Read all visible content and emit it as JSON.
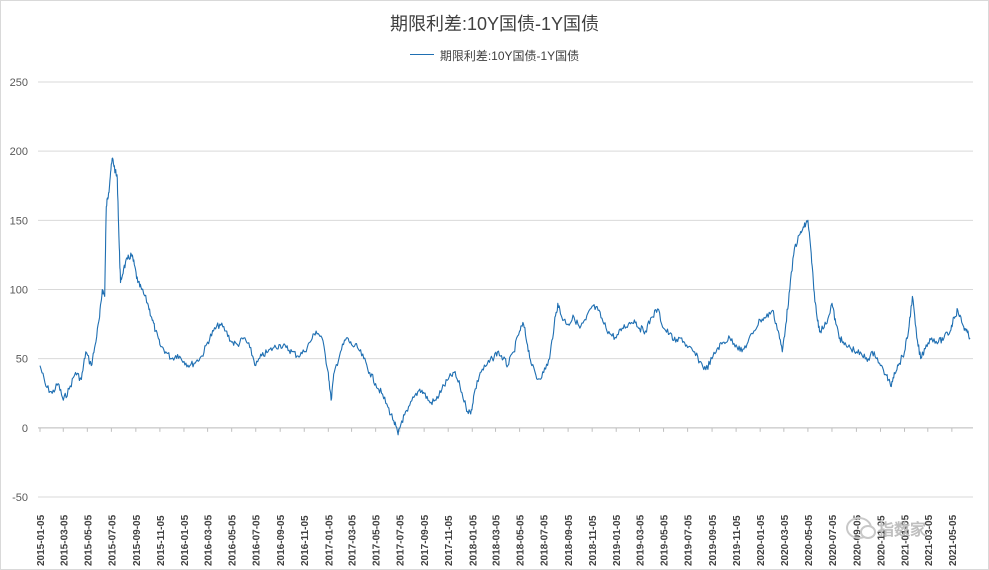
{
  "chart_data": {
    "type": "line",
    "title": "期限利差:10Y国债-1Y国债",
    "legend": {
      "position": "top",
      "entries": [
        "期限利差:10Y国债-1Y国债"
      ]
    },
    "xlabel": "",
    "ylabel": "",
    "ylim": [
      -50,
      250
    ],
    "yticks": [
      -50,
      0,
      50,
      100,
      150,
      200,
      250
    ],
    "grid": "horizontal",
    "series_color": "#1f6fb2",
    "xticks": [
      "2015-01-05",
      "2015-03-05",
      "2015-05-05",
      "2015-07-05",
      "2015-09-05",
      "2015-11-05",
      "2016-01-05",
      "2016-03-05",
      "2016-05-05",
      "2016-07-05",
      "2016-09-05",
      "2016-11-05",
      "2017-01-05",
      "2017-03-05",
      "2017-05-05",
      "2017-07-05",
      "2017-09-05",
      "2017-11-05",
      "2018-01-05",
      "2018-03-05",
      "2018-05-05",
      "2018-07-05",
      "2018-09-05",
      "2018-11-05",
      "2019-01-05",
      "2019-03-05",
      "2019-05-05",
      "2019-07-05",
      "2019-09-05",
      "2019-11-05",
      "2020-01-05",
      "2020-03-05",
      "2020-05-05",
      "2020-07-05",
      "2020-09-05",
      "2020-11-05",
      "2021-01-05",
      "2021-03-05",
      "2021-05-05"
    ],
    "series": [
      {
        "name": "期限利差:10Y国债-1Y国债",
        "points": [
          [
            "2015-01-05",
            45
          ],
          [
            "2015-01-20",
            30
          ],
          [
            "2015-02-05",
            25
          ],
          [
            "2015-02-20",
            32
          ],
          [
            "2015-03-05",
            20
          ],
          [
            "2015-03-20",
            28
          ],
          [
            "2015-04-05",
            40
          ],
          [
            "2015-04-20",
            35
          ],
          [
            "2015-05-01",
            55
          ],
          [
            "2015-05-15",
            45
          ],
          [
            "2015-05-25",
            60
          ],
          [
            "2015-06-05",
            80
          ],
          [
            "2015-06-12",
            100
          ],
          [
            "2015-06-18",
            95
          ],
          [
            "2015-06-22",
            160
          ],
          [
            "2015-06-28",
            170
          ],
          [
            "2015-07-03",
            185
          ],
          [
            "2015-07-08",
            195
          ],
          [
            "2015-07-15",
            185
          ],
          [
            "2015-07-20",
            180
          ],
          [
            "2015-07-25",
            130
          ],
          [
            "2015-07-28",
            105
          ],
          [
            "2015-08-05",
            115
          ],
          [
            "2015-08-15",
            122
          ],
          [
            "2015-08-25",
            125
          ],
          [
            "2015-09-01",
            118
          ],
          [
            "2015-09-10",
            105
          ],
          [
            "2015-09-20",
            100
          ],
          [
            "2015-10-05",
            90
          ],
          [
            "2015-10-15",
            80
          ],
          [
            "2015-10-25",
            70
          ],
          [
            "2015-11-05",
            60
          ],
          [
            "2015-11-20",
            55
          ],
          [
            "2015-12-05",
            50
          ],
          [
            "2015-12-20",
            53
          ],
          [
            "2016-01-05",
            48
          ],
          [
            "2016-01-20",
            45
          ],
          [
            "2016-02-05",
            48
          ],
          [
            "2016-02-20",
            52
          ],
          [
            "2016-03-05",
            62
          ],
          [
            "2016-03-20",
            70
          ],
          [
            "2016-04-05",
            75
          ],
          [
            "2016-04-20",
            70
          ],
          [
            "2016-05-05",
            62
          ],
          [
            "2016-05-20",
            60
          ],
          [
            "2016-06-05",
            65
          ],
          [
            "2016-06-20",
            58
          ],
          [
            "2016-07-05",
            45
          ],
          [
            "2016-07-20",
            52
          ],
          [
            "2016-08-05",
            55
          ],
          [
            "2016-08-20",
            58
          ],
          [
            "2016-09-05",
            60
          ],
          [
            "2016-09-20",
            58
          ],
          [
            "2016-10-05",
            55
          ],
          [
            "2016-10-20",
            52
          ],
          [
            "2016-11-05",
            55
          ],
          [
            "2016-11-20",
            62
          ],
          [
            "2016-12-05",
            70
          ],
          [
            "2016-12-20",
            65
          ],
          [
            "2017-01-05",
            40
          ],
          [
            "2017-01-12",
            20
          ],
          [
            "2017-01-20",
            40
          ],
          [
            "2017-02-05",
            55
          ],
          [
            "2017-02-20",
            65
          ],
          [
            "2017-03-05",
            60
          ],
          [
            "2017-03-20",
            58
          ],
          [
            "2017-04-05",
            50
          ],
          [
            "2017-04-20",
            40
          ],
          [
            "2017-05-05",
            32
          ],
          [
            "2017-05-20",
            25
          ],
          [
            "2017-06-05",
            15
          ],
          [
            "2017-06-20",
            5
          ],
          [
            "2017-07-01",
            -5
          ],
          [
            "2017-07-10",
            5
          ],
          [
            "2017-07-25",
            12
          ],
          [
            "2017-08-10",
            22
          ],
          [
            "2017-08-25",
            28
          ],
          [
            "2017-09-05",
            25
          ],
          [
            "2017-09-20",
            18
          ],
          [
            "2017-10-05",
            20
          ],
          [
            "2017-10-20",
            28
          ],
          [
            "2017-11-05",
            35
          ],
          [
            "2017-11-20",
            40
          ],
          [
            "2017-12-05",
            30
          ],
          [
            "2017-12-20",
            15
          ],
          [
            "2018-01-01",
            10
          ],
          [
            "2018-01-10",
            25
          ],
          [
            "2018-01-25",
            40
          ],
          [
            "2018-02-10",
            45
          ],
          [
            "2018-02-25",
            50
          ],
          [
            "2018-03-10",
            55
          ],
          [
            "2018-03-25",
            50
          ],
          [
            "2018-04-05",
            45
          ],
          [
            "2018-04-20",
            55
          ],
          [
            "2018-05-05",
            70
          ],
          [
            "2018-05-15",
            75
          ],
          [
            "2018-05-25",
            60
          ],
          [
            "2018-06-05",
            45
          ],
          [
            "2018-06-20",
            35
          ],
          [
            "2018-07-05",
            40
          ],
          [
            "2018-07-20",
            50
          ],
          [
            "2018-08-01",
            75
          ],
          [
            "2018-08-10",
            90
          ],
          [
            "2018-08-20",
            80
          ],
          [
            "2018-09-05",
            75
          ],
          [
            "2018-09-20",
            80
          ],
          [
            "2018-10-05",
            72
          ],
          [
            "2018-10-20",
            78
          ],
          [
            "2018-11-05",
            88
          ],
          [
            "2018-11-20",
            85
          ],
          [
            "2018-12-05",
            75
          ],
          [
            "2018-12-20",
            68
          ],
          [
            "2019-01-05",
            65
          ],
          [
            "2019-01-20",
            72
          ],
          [
            "2019-02-05",
            75
          ],
          [
            "2019-02-20",
            78
          ],
          [
            "2019-03-05",
            72
          ],
          [
            "2019-03-20",
            70
          ],
          [
            "2019-04-05",
            80
          ],
          [
            "2019-04-20",
            86
          ],
          [
            "2019-05-05",
            72
          ],
          [
            "2019-05-20",
            68
          ],
          [
            "2019-06-05",
            62
          ],
          [
            "2019-06-20",
            65
          ],
          [
            "2019-07-05",
            58
          ],
          [
            "2019-07-20",
            55
          ],
          [
            "2019-08-05",
            48
          ],
          [
            "2019-08-20",
            42
          ],
          [
            "2019-09-05",
            50
          ],
          [
            "2019-09-20",
            58
          ],
          [
            "2019-10-05",
            62
          ],
          [
            "2019-10-20",
            65
          ],
          [
            "2019-11-05",
            60
          ],
          [
            "2019-11-20",
            55
          ],
          [
            "2019-12-05",
            62
          ],
          [
            "2019-12-20",
            70
          ],
          [
            "2020-01-05",
            78
          ],
          [
            "2020-01-20",
            80
          ],
          [
            "2020-02-05",
            85
          ],
          [
            "2020-02-20",
            70
          ],
          [
            "2020-03-01",
            55
          ],
          [
            "2020-03-10",
            75
          ],
          [
            "2020-03-20",
            100
          ],
          [
            "2020-04-01",
            130
          ],
          [
            "2020-04-15",
            140
          ],
          [
            "2020-04-25",
            145
          ],
          [
            "2020-05-05",
            150
          ],
          [
            "2020-05-12",
            130
          ],
          [
            "2020-05-20",
            100
          ],
          [
            "2020-05-28",
            80
          ],
          [
            "2020-06-05",
            70
          ],
          [
            "2020-06-20",
            75
          ],
          [
            "2020-07-05",
            90
          ],
          [
            "2020-07-15",
            75
          ],
          [
            "2020-07-25",
            65
          ],
          [
            "2020-08-05",
            60
          ],
          [
            "2020-08-20",
            58
          ],
          [
            "2020-09-05",
            55
          ],
          [
            "2020-09-20",
            52
          ],
          [
            "2020-10-05",
            50
          ],
          [
            "2020-10-20",
            55
          ],
          [
            "2020-11-05",
            45
          ],
          [
            "2020-11-20",
            38
          ],
          [
            "2020-12-01",
            30
          ],
          [
            "2020-12-10",
            40
          ],
          [
            "2020-12-20",
            45
          ],
          [
            "2021-01-05",
            55
          ],
          [
            "2021-01-15",
            70
          ],
          [
            "2021-01-25",
            95
          ],
          [
            "2021-02-05",
            65
          ],
          [
            "2021-02-15",
            50
          ],
          [
            "2021-03-01",
            60
          ],
          [
            "2021-03-15",
            65
          ],
          [
            "2021-04-01",
            62
          ],
          [
            "2021-04-15",
            65
          ],
          [
            "2021-05-01",
            70
          ],
          [
            "2021-05-10",
            80
          ],
          [
            "2021-05-20",
            85
          ],
          [
            "2021-06-01",
            75
          ],
          [
            "2021-06-10",
            70
          ],
          [
            "2021-06-20",
            65
          ]
        ]
      }
    ]
  },
  "watermark": {
    "icon": "chat-bubble-icon",
    "text": "指数家"
  }
}
